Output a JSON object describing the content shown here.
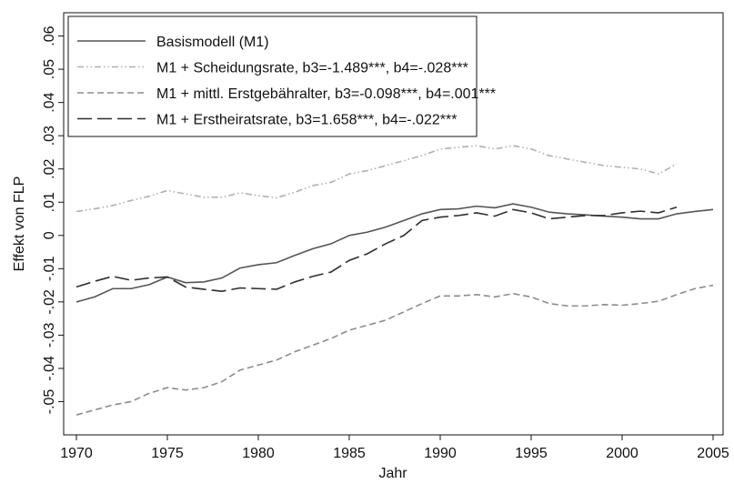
{
  "chart_data": {
    "type": "line",
    "x_label": "Jahr",
    "y_label": "Effekt von FLP",
    "x": [
      1970,
      1971,
      1972,
      1973,
      1974,
      1975,
      1976,
      1977,
      1978,
      1979,
      1980,
      1981,
      1982,
      1983,
      1984,
      1985,
      1986,
      1987,
      1988,
      1989,
      1990,
      1991,
      1992,
      1993,
      1994,
      1995,
      1996,
      1997,
      1998,
      1999,
      2000,
      2001,
      2002,
      2003,
      2004,
      2005
    ],
    "xlim": [
      1969.3,
      2005.55
    ],
    "xticks": [
      1970,
      1975,
      1980,
      1985,
      1990,
      1995,
      2000,
      2005
    ],
    "ylim": [
      -0.06,
      0.067
    ],
    "yticks": [
      {
        "value": -0.05,
        "label": "-.05"
      },
      {
        "value": -0.04,
        "label": "-.04"
      },
      {
        "value": -0.03,
        "label": "-.03"
      },
      {
        "value": -0.02,
        "label": "-.02"
      },
      {
        "value": -0.01,
        "label": "-.01"
      },
      0,
      {
        "value": 0.01,
        "label": ".01"
      },
      {
        "value": 0.02,
        "label": ".02"
      },
      {
        "value": 0.03,
        "label": ".03"
      },
      {
        "value": 0.04,
        "label": ".04"
      },
      {
        "value": 0.05,
        "label": ".05"
      },
      {
        "value": 0.06,
        "label": ".06"
      }
    ],
    "grid": false,
    "legend": "top-left",
    "series": [
      {
        "name": "Basismodell (M1)",
        "color": "#555555",
        "dash": "solid",
        "values": [
          -0.02,
          -0.0185,
          -0.016,
          -0.016,
          -0.0148,
          -0.0125,
          -0.0142,
          -0.014,
          -0.0128,
          -0.0098,
          -0.0088,
          -0.0082,
          -0.006,
          -0.004,
          -0.0025,
          0.0,
          0.001,
          0.0025,
          0.0045,
          0.0065,
          0.0078,
          0.008,
          0.0088,
          0.0083,
          0.0095,
          0.0085,
          0.007,
          0.0065,
          0.0062,
          0.0058,
          0.0055,
          0.005,
          0.005,
          0.0065,
          0.0072,
          0.0078
        ]
      },
      {
        "name": "M1 + Scheidungsrate, b3=-1.489***, b4=-.028***",
        "color": "#b0b0b0",
        "dash": "dash-dot-dot",
        "values": [
          0.0072,
          0.008,
          0.009,
          0.0105,
          0.0118,
          0.0135,
          0.0125,
          0.0115,
          0.0115,
          0.0128,
          0.012,
          0.0113,
          0.013,
          0.015,
          0.016,
          0.0185,
          0.0195,
          0.021,
          0.0225,
          0.024,
          0.026,
          0.0265,
          0.027,
          0.026,
          0.027,
          0.026,
          0.024,
          0.023,
          0.022,
          0.021,
          0.0205,
          0.02,
          0.0185,
          0.0215,
          null,
          null
        ]
      },
      {
        "name": "M1 + mittl. Erstgebähralter, b3=-0.098***, b4=.001***",
        "color": "#8c8c8c",
        "dash": "dash",
        "values": [
          -0.054,
          -0.0525,
          -0.051,
          -0.05,
          -0.0475,
          -0.0458,
          -0.0465,
          -0.0458,
          -0.044,
          -0.0405,
          -0.039,
          -0.0375,
          -0.035,
          -0.033,
          -0.031,
          -0.0285,
          -0.027,
          -0.0255,
          -0.023,
          -0.0205,
          -0.0182,
          -0.0182,
          -0.0178,
          -0.0185,
          -0.0175,
          -0.0185,
          -0.0205,
          -0.0212,
          -0.0212,
          -0.0208,
          -0.021,
          -0.0205,
          -0.0198,
          -0.0178,
          -0.016,
          -0.015
        ]
      },
      {
        "name": "M1 + Erstheiratsrate, b3=1.658***, b4=-.022***",
        "color": "#2e2e2e",
        "dash": "long-dash",
        "values": [
          -0.0155,
          -0.0138,
          -0.0123,
          -0.0135,
          -0.0128,
          -0.0125,
          -0.0155,
          -0.0162,
          -0.0168,
          -0.0158,
          -0.016,
          -0.0162,
          -0.014,
          -0.0123,
          -0.011,
          -0.0075,
          -0.0055,
          -0.0025,
          0.0,
          0.0045,
          0.0055,
          0.006,
          0.0068,
          0.0058,
          0.0078,
          0.0068,
          0.005,
          0.0055,
          0.006,
          0.006,
          0.0068,
          0.0073,
          0.0068,
          0.0085,
          null,
          null
        ]
      }
    ]
  }
}
